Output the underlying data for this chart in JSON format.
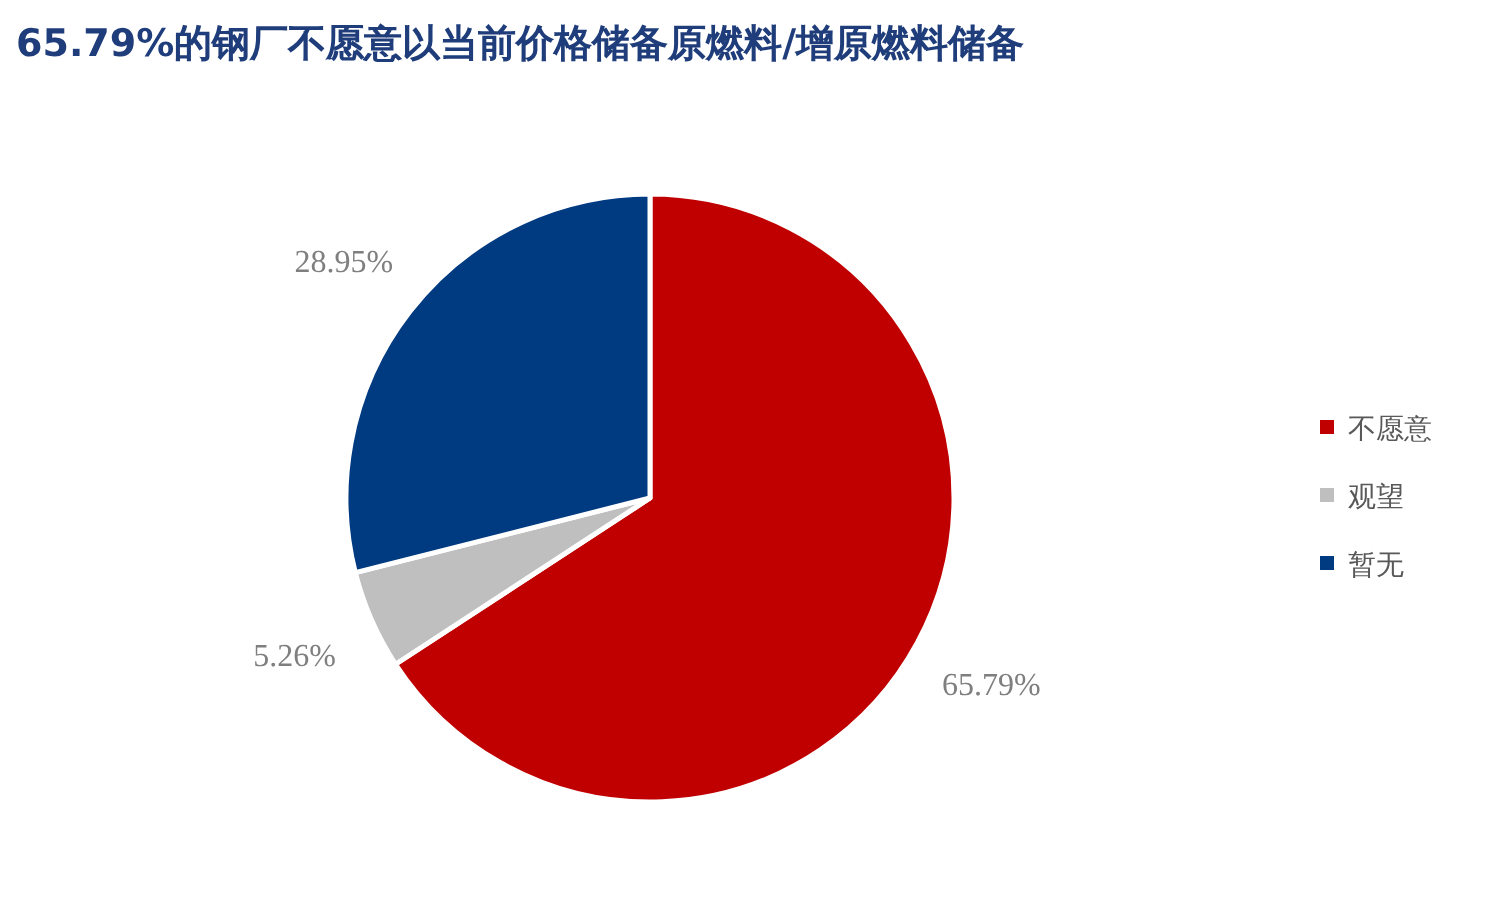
{
  "chart_data": {
    "type": "pie",
    "title": "65.79%的钢厂不愿意以当前价格储备原燃料/增原燃料储备",
    "categories": [
      "不愿意",
      "观望",
      "暂无"
    ],
    "values": [
      65.79,
      5.26,
      28.95
    ],
    "colors": [
      "#c00000",
      "#bfbfbf",
      "#003a80"
    ],
    "value_labels": [
      "65.79%",
      "5.26%",
      "28.95%"
    ],
    "legend": "right"
  }
}
